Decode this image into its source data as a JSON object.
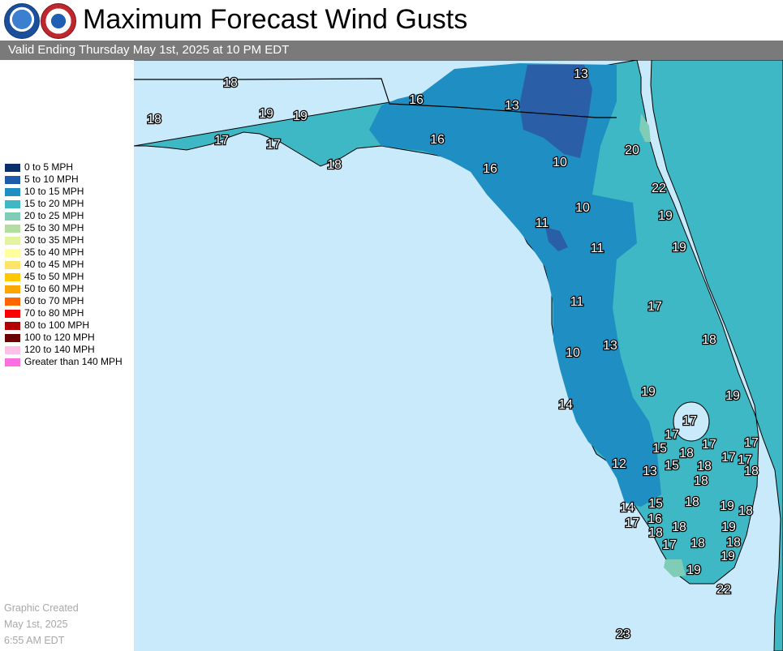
{
  "title": "Maximum Forecast Wind Gusts",
  "valid": "Valid Ending Thursday May 1st, 2025 at 10 PM EDT",
  "logos": {
    "left": "noaa-logo",
    "right": "nws-logo"
  },
  "legend": [
    {
      "label": "0 to 5 MPH",
      "color": "#0b2f6b"
    },
    {
      "label": "5 to 10 MPH",
      "color": "#1f5bab"
    },
    {
      "label": "10 to 15 MPH",
      "color": "#1f8ec2"
    },
    {
      "label": "15 to 20 MPH",
      "color": "#3db8c4"
    },
    {
      "label": "20 to 25 MPH",
      "color": "#7fcdb6"
    },
    {
      "label": "25 to 30 MPH",
      "color": "#b3dea0"
    },
    {
      "label": "30 to 35 MPH",
      "color": "#e2f59e"
    },
    {
      "label": "35 to 40 MPH",
      "color": "#ffff9c"
    },
    {
      "label": "40 to 45 MPH",
      "color": "#ffe46a"
    },
    {
      "label": "45 to 50 MPH",
      "color": "#ffc800"
    },
    {
      "label": "50 to 60 MPH",
      "color": "#ffa500"
    },
    {
      "label": "60 to 70 MPH",
      "color": "#ff6600"
    },
    {
      "label": "70 to 80 MPH",
      "color": "#ff0000"
    },
    {
      "label": "80 to 100 MPH",
      "color": "#b30000"
    },
    {
      "label": "100 to 120 MPH",
      "color": "#6b0000"
    },
    {
      "label": "120 to 140 MPH",
      "color": "#ffc0e8"
    },
    {
      "label": "Greater than 140 MPH",
      "color": "#ff6ee0"
    }
  ],
  "created": [
    "Graphic Created",
    "May 1st, 2025",
    "6:55 AM EDT"
  ],
  "map": {
    "colors": {
      "water": "#c8eafb",
      "zone_15_20": "#3db8c4",
      "zone_10_15": "#1f8ec2",
      "zone_5_10": "#2a5fa8",
      "zone_20_25": "#7fcdb6",
      "outline": "#000000"
    },
    "values": [
      "13",
      "18",
      "16",
      "13",
      "19",
      "19",
      "18",
      "16",
      "17",
      "17",
      "20",
      "18",
      "16",
      "10",
      "22",
      "10",
      "19",
      "11",
      "19",
      "11",
      "11",
      "17",
      "18",
      "13",
      "10",
      "19",
      "19",
      "14",
      "17",
      "17",
      "17",
      "17",
      "15",
      "18",
      "17",
      "17",
      "12",
      "13",
      "15",
      "18",
      "18",
      "18",
      "15",
      "18",
      "14",
      "19",
      "18",
      "17",
      "16",
      "18",
      "18",
      "19",
      "18",
      "17",
      "18",
      "19",
      "19",
      "22",
      "23"
    ]
  }
}
